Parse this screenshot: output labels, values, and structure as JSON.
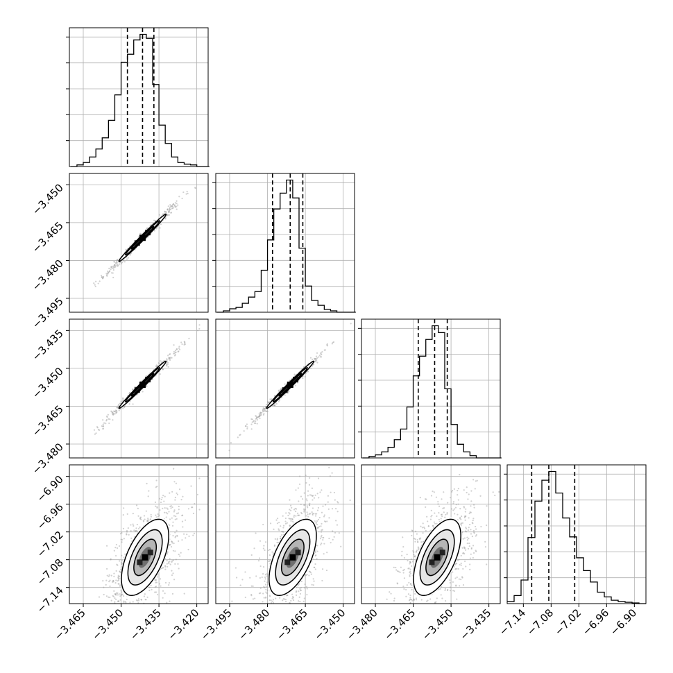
{
  "chart_data": {
    "type": "corner",
    "grid": true,
    "axis_ranges": [
      [
        -3.4705,
        -3.4155
      ],
      [
        -3.5005,
        -3.4455
      ],
      [
        -3.4855,
        -3.4305
      ],
      [
        -7.175,
        -6.875
      ]
    ],
    "ticks": [
      {
        "values": [
          -3.465,
          -3.45,
          -3.435,
          -3.42
        ],
        "labels": [
          "−3.465",
          "−3.450",
          "−3.435",
          "−3.420"
        ]
      },
      {
        "values": [
          -3.495,
          -3.48,
          -3.465,
          -3.45
        ],
        "labels": [
          "−3.495",
          "−3.480",
          "−3.465",
          "−3.450"
        ]
      },
      {
        "values": [
          -3.48,
          -3.465,
          -3.45,
          -3.435
        ],
        "labels": [
          "−3.480",
          "−3.465",
          "−3.450",
          "−3.435"
        ]
      },
      {
        "values": [
          -7.14,
          -7.08,
          -7.02,
          -6.96,
          -6.9
        ],
        "labels": [
          "−7.14",
          "−7.08",
          "−7.02",
          "−6.96",
          "−6.90"
        ]
      }
    ],
    "histograms": [
      {
        "parameter": 0,
        "bins": {
          "edges_from": -3.47,
          "bin_width": 0.0025
        },
        "counts": [
          0,
          2,
          5,
          12,
          22,
          36,
          58,
          90,
          131,
          141,
          159,
          166,
          161,
          103,
          52,
          29,
          12,
          5,
          3,
          2,
          0,
          0
        ],
        "quantiles": [
          -3.4475,
          -3.4415,
          -3.437
        ]
      },
      {
        "parameter": 1,
        "bins": {
          "edges_from": -3.5,
          "bin_width": 0.0025
        },
        "counts": [
          0,
          2,
          5,
          7,
          13,
          22,
          30,
          61,
          105,
          150,
          173,
          192,
          166,
          93,
          38,
          17,
          10,
          4,
          2,
          0,
          0,
          0
        ],
        "quantiles": [
          -3.478,
          -3.471,
          -3.466
        ]
      },
      {
        "parameter": 2,
        "bins": {
          "edges_from": -3.485,
          "bin_width": 0.0025
        },
        "counts": [
          0,
          2,
          4,
          8,
          14,
          24,
          38,
          67,
          108,
          134,
          156,
          174,
          165,
          91,
          44,
          18,
          8,
          3,
          0,
          0,
          0,
          0
        ],
        "quantiles": [
          -3.463,
          -3.4565,
          -3.4515
        ]
      },
      {
        "parameter": 3,
        "bins": {
          "edges_from": -7.175,
          "bin_width": 0.015
        },
        "counts": [
          3,
          12,
          35,
          98,
          152,
          183,
          196,
          164,
          127,
          99,
          68,
          49,
          32,
          17,
          10,
          5,
          3,
          2,
          1,
          0
        ],
        "quantiles": [
          -7.122,
          -7.085,
          -7.029
        ]
      }
    ],
    "pairs": [
      {
        "row": 1,
        "col": 0,
        "center": [
          -3.4415,
          -3.471
        ],
        "cov": [
          [
            2.2e-05,
            2.18e-05
          ],
          [
            2.18e-05,
            2.2e-05
          ]
        ]
      },
      {
        "row": 2,
        "col": 0,
        "center": [
          -3.4415,
          -3.4565
        ],
        "cov": [
          [
            2.2e-05,
            2.18e-05
          ],
          [
            2.18e-05,
            2.2e-05
          ]
        ]
      },
      {
        "row": 2,
        "col": 1,
        "center": [
          -3.471,
          -3.4565
        ],
        "cov": [
          [
            2.2e-05,
            2.18e-05
          ],
          [
            2.18e-05,
            2.2e-05
          ]
        ]
      },
      {
        "row": 3,
        "col": 0,
        "center": [
          -3.4405,
          -7.075
        ],
        "cov": [
          [
            2.2e-05,
            0.00011
          ],
          [
            0.00011,
            0.0017
          ]
        ]
      },
      {
        "row": 3,
        "col": 1,
        "center": [
          -3.47,
          -7.075
        ],
        "cov": [
          [
            2.2e-05,
            0.00011
          ],
          [
            0.00011,
            0.0017
          ]
        ]
      },
      {
        "row": 3,
        "col": 2,
        "center": [
          -3.4555,
          -7.075
        ],
        "cov": [
          [
            2.2e-05,
            0.00011
          ],
          [
            0.00011,
            0.0017
          ]
        ]
      }
    ],
    "colors": {
      "line": "#000000",
      "grid": "#b0b0b0",
      "points": "#9a9a9a"
    }
  }
}
